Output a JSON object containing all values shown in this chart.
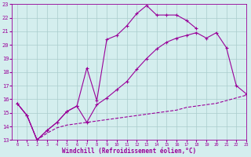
{
  "line1_x": [
    0,
    1,
    2,
    3,
    4,
    5,
    6,
    7,
    8,
    9,
    10,
    11,
    12,
    13,
    14,
    15,
    16,
    17,
    18
  ],
  "line1_y": [
    15.7,
    14.8,
    13.0,
    13.7,
    14.3,
    15.1,
    15.5,
    18.3,
    15.9,
    20.4,
    20.7,
    21.4,
    22.3,
    22.9,
    22.2,
    22.2,
    22.2,
    21.8,
    21.2
  ],
  "line2_x": [
    0,
    1,
    2,
    3,
    4,
    5,
    6,
    7,
    8,
    9,
    10,
    11,
    12,
    13,
    14,
    15,
    16,
    17,
    18,
    19,
    20,
    21,
    22,
    23
  ],
  "line2_y": [
    15.7,
    14.8,
    13.0,
    13.7,
    14.3,
    15.1,
    15.5,
    14.3,
    15.6,
    16.1,
    16.7,
    17.3,
    18.2,
    19.0,
    19.7,
    20.2,
    20.5,
    20.7,
    20.9,
    20.5,
    20.9,
    19.8,
    17.0,
    16.4
  ],
  "line3_x": [
    0,
    1,
    2,
    3,
    4,
    5,
    6,
    7,
    8,
    9,
    10,
    11,
    12,
    13,
    14,
    15,
    16,
    17,
    18,
    19,
    20,
    21,
    22,
    23
  ],
  "line3_y": [
    15.7,
    14.8,
    13.0,
    13.5,
    13.9,
    14.1,
    14.2,
    14.3,
    14.4,
    14.5,
    14.6,
    14.7,
    14.8,
    14.9,
    15.0,
    15.1,
    15.2,
    15.4,
    15.5,
    15.6,
    15.7,
    15.9,
    16.1,
    16.3
  ],
  "line_color": "#990099",
  "bg_color": "#d4eeee",
  "grid_color": "#aacccc",
  "xlim": [
    -0.5,
    23
  ],
  "ylim": [
    13,
    23
  ],
  "yticks": [
    13,
    14,
    15,
    16,
    17,
    18,
    19,
    20,
    21,
    22,
    23
  ],
  "xticks": [
    0,
    1,
    2,
    3,
    4,
    5,
    6,
    7,
    8,
    9,
    10,
    11,
    12,
    13,
    14,
    15,
    16,
    17,
    18,
    19,
    20,
    21,
    22,
    23
  ],
  "xlabel": "Windchill (Refroidissement éolien,°C)",
  "marker": "+",
  "markersize": 3.5,
  "linewidth": 0.8
}
